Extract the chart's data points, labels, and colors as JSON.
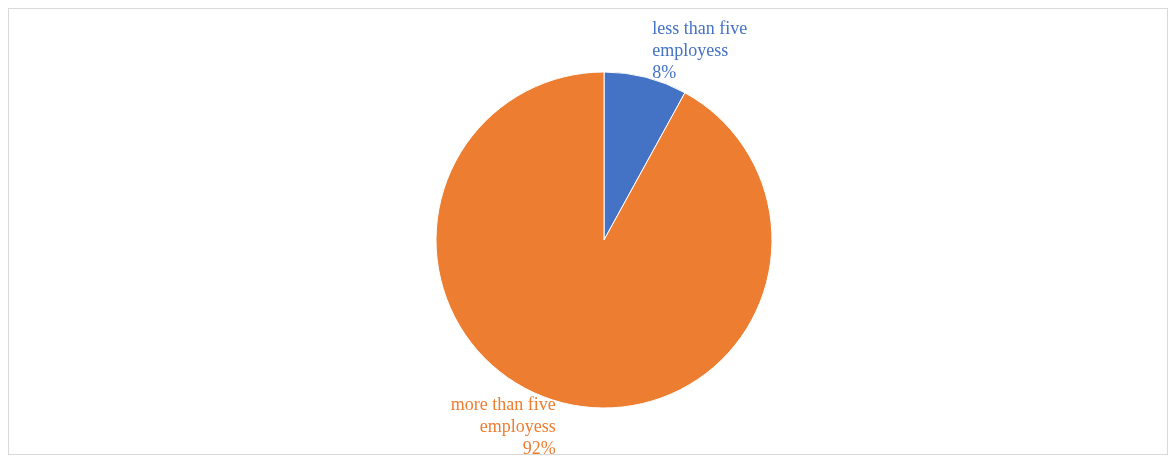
{
  "chart_data": {
    "type": "pie",
    "categories": [
      "less than five employess",
      "more than five employess"
    ],
    "values": [
      8,
      92
    ],
    "colors": [
      "#4472c4",
      "#ed7d31"
    ],
    "value_labels": [
      "8%",
      "92%"
    ]
  }
}
